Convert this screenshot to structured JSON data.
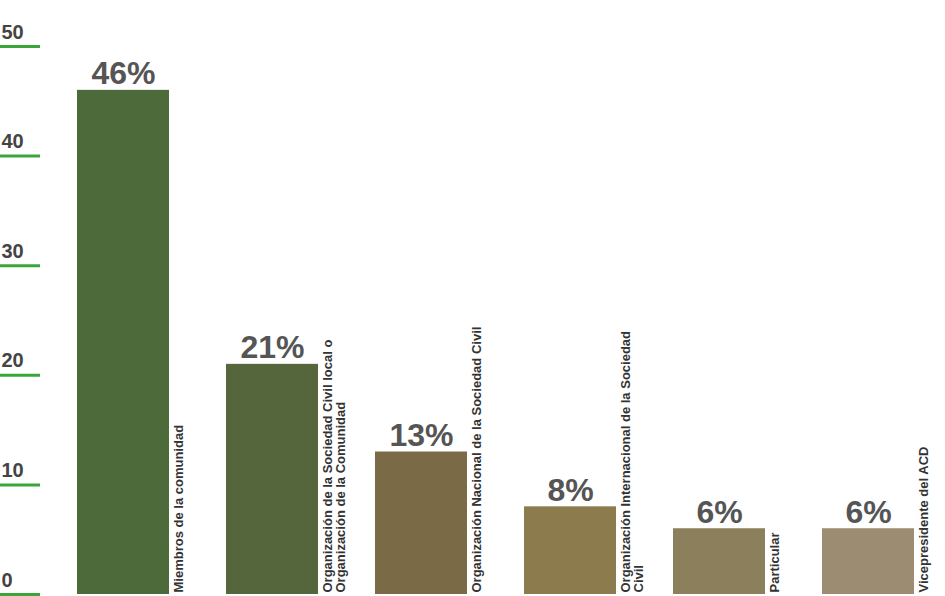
{
  "chart_data": {
    "type": "bar",
    "categories": [
      "Miembros de la comunidad",
      "Organización de la Sociedad Civil local o Organización de la Comunidad",
      "Organización Nacional de la Sociedad Civil",
      "Organización Internacional de la Sociedad Civil",
      "Particular",
      "Vicepresidente del ACD"
    ],
    "values": [
      46,
      21,
      13,
      8,
      6,
      6
    ],
    "value_labels": [
      "46%",
      "21%",
      "13%",
      "8%",
      "6%",
      "6%"
    ],
    "data_labels": true,
    "colors": [
      "#4d6b3a",
      "#56663c",
      "#7a6a45",
      "#8c7b4c",
      "#8b7f5c",
      "#9c8c72"
    ],
    "ylim": [
      0,
      50
    ],
    "yticks": [
      0,
      10,
      20,
      30,
      40,
      50
    ],
    "grid": false
  }
}
